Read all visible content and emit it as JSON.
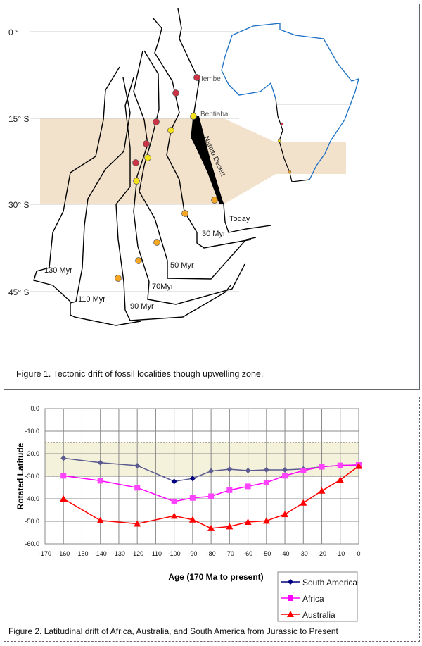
{
  "figure1": {
    "caption": "Figure 1. Tectonic drift of fossil localities though upwelling zone.",
    "latitude_labels": [
      "0 °",
      "15° S",
      "30° S",
      "45° S"
    ],
    "coast_labels": [
      "Today",
      "30 Myr",
      "50 Myr",
      "70Myr",
      "90 Myr",
      "110 Myr",
      "130 Myr"
    ],
    "place_labels": [
      "Iembe",
      "Bentiaba",
      "Namib Desert"
    ],
    "colors": {
      "upwelling_zone": "#f2e2cc",
      "africa_outline": "#1a6fc4",
      "fossil_red": "#cc3344",
      "fossil_yellow": "#f5e11a",
      "fossil_orange": "#f5a623"
    }
  },
  "figure2": {
    "caption": "Figure 2. Latitudinal drift of Africa, Australia, and South America from Jurassic to Present"
  },
  "chart_data": {
    "type": "line",
    "xlabel": "Age (170 Ma to present)",
    "ylabel": "Rotated Latitude",
    "xlim": [
      -170,
      0
    ],
    "ylim": [
      -60,
      0
    ],
    "xticks": [
      -170,
      -160,
      -150,
      -140,
      -130,
      -120,
      -110,
      -100,
      -90,
      -80,
      -70,
      -60,
      -50,
      -40,
      -30,
      -20,
      -10,
      0
    ],
    "yticks": [
      "0.0",
      "-10.0",
      "-20.0",
      "-30.0",
      "-40.0",
      "-50.0",
      "-60.0"
    ],
    "grid": true,
    "legend_placement": "bottom-right",
    "shaded_band": [
      -30,
      -15
    ],
    "band_color": "#f5f2dc",
    "x": [
      -160,
      -140,
      -120,
      -100,
      -90,
      -80,
      -70,
      -60,
      -50,
      -40,
      -30,
      -20,
      -10,
      0
    ],
    "series": [
      {
        "name": "South America",
        "color": "#000080",
        "marker": "diamond",
        "values": [
          -22,
          -24,
          -25.3,
          -32.3,
          -31,
          -27.7,
          -26.9,
          -27.5,
          -27.2,
          -27.2,
          -26.8,
          -25.8,
          -25.2,
          -25
        ]
      },
      {
        "name": "Africa",
        "color": "#ff00ff",
        "marker": "square",
        "values": [
          -29.8,
          -32,
          -35.1,
          -41.2,
          -39.6,
          -38.9,
          -36.2,
          -34.5,
          -32.8,
          -29.8,
          -27.5,
          -25.8,
          -25.2,
          -25
        ]
      },
      {
        "name": "Australia",
        "color": "#ff0000",
        "marker": "triangle",
        "values": [
          -40,
          -49.6,
          -51.1,
          -47.6,
          -49.3,
          -53.1,
          -52.3,
          -50.3,
          -49.8,
          -46.9,
          -41.8,
          -36.5,
          -31.6,
          -25.5
        ]
      }
    ]
  }
}
